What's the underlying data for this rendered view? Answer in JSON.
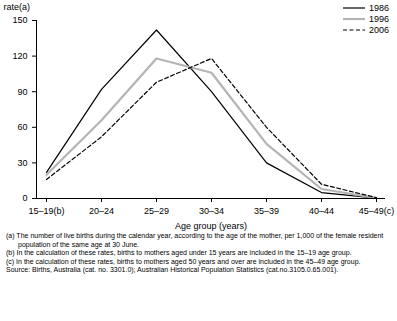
{
  "chart_data": {
    "type": "line",
    "x_label": "Age group (years)",
    "y_label": "rate(a)",
    "categories": [
      "15–19(b)",
      "20–24",
      "25–29",
      "30–34",
      "35–39",
      "40–44",
      "45–49(c)"
    ],
    "series": [
      {
        "name": "1986",
        "color": "#000000",
        "line_style": "solid",
        "values": [
          22,
          92,
          142,
          90,
          30,
          5,
          0.3
        ]
      },
      {
        "name": "1996",
        "color": "#b4b4b4",
        "line_style": "solid",
        "values": [
          20,
          66,
          118,
          106,
          46,
          8,
          0.4
        ]
      },
      {
        "name": "2006",
        "color": "#000000",
        "line_style": "dashed",
        "values": [
          16,
          52,
          98,
          118,
          60,
          12,
          0.7
        ]
      }
    ],
    "ylim": [
      0,
      150
    ],
    "yticks": [
      0,
      30,
      60,
      90,
      120,
      150
    ],
    "grid": false,
    "legend": "top-right",
    "annotations": [
      "(a)  The number of live births during the calendar year, according to the age of the mother, per 1,000 of the female resident population of the same age at 30 June.",
      "(b)  In the calculation of these rates, births to mothers aged under 15 years are included in the 15–19 age group.",
      "(c)  In the calculation of these rates, births to mothers aged 50 years and over are included in the 45–49 age group.",
      "Source: Births, Australia (cat. no. 3301.0); Australian Historical Population Statistics (cat.no.3105.0.65.001)."
    ]
  }
}
